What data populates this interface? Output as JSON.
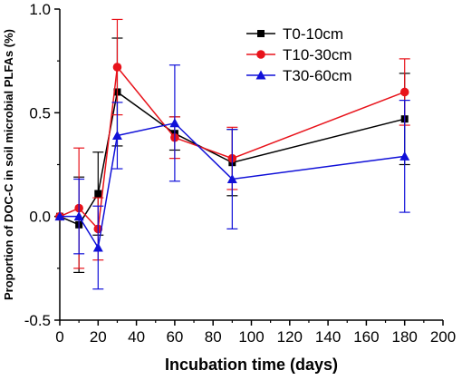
{
  "chart_data": {
    "type": "line",
    "title": "",
    "xlabel": "Incubation time (days)",
    "ylabel": "Proportion of DOC-C in soil microbial PLFAs (%)",
    "xlim": [
      0,
      200
    ],
    "ylim": [
      -0.5,
      1.0
    ],
    "xticks": [
      0,
      20,
      40,
      60,
      80,
      100,
      120,
      140,
      160,
      180,
      200
    ],
    "yticks": [
      -0.5,
      0.0,
      0.5,
      1.0
    ],
    "ytick_labels": [
      "-0.5",
      "0.0",
      "0.5",
      "1.0"
    ],
    "grid": false,
    "legend_position": "top-right",
    "series": [
      {
        "name": "T0-10cm",
        "color": "#000000",
        "marker": "square",
        "x": [
          0,
          10,
          20,
          30,
          60,
          90,
          180
        ],
        "y": [
          0.0,
          -0.04,
          0.11,
          0.6,
          0.4,
          0.26,
          0.47
        ],
        "err": [
          0.0,
          0.23,
          0.2,
          0.26,
          0.08,
          0.16,
          0.22
        ]
      },
      {
        "name": "T10-30cm",
        "color": "#e8131b",
        "marker": "circle",
        "x": [
          0,
          10,
          20,
          30,
          60,
          90,
          180
        ],
        "y": [
          0.0,
          0.04,
          -0.06,
          0.72,
          0.38,
          0.28,
          0.6
        ],
        "err": [
          0.0,
          0.29,
          0.15,
          0.23,
          0.1,
          0.15,
          0.16
        ]
      },
      {
        "name": "T30-60cm",
        "color": "#1010d8",
        "marker": "triangle",
        "x": [
          0,
          10,
          20,
          30,
          60,
          90,
          180
        ],
        "y": [
          0.0,
          0.0,
          -0.15,
          0.39,
          0.45,
          0.18,
          0.29
        ],
        "err": [
          0.0,
          0.18,
          0.2,
          0.16,
          0.28,
          0.24,
          0.27
        ]
      }
    ]
  }
}
